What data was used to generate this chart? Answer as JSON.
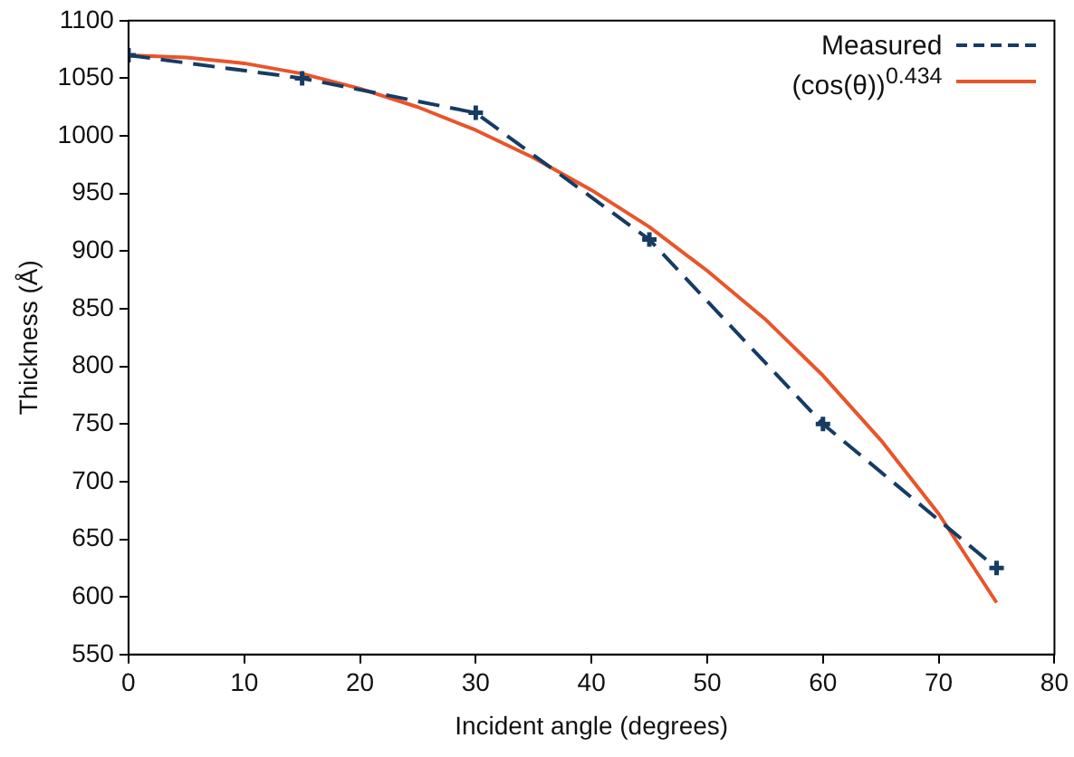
{
  "chart_data": {
    "type": "line",
    "xlabel": "Incident angle (degrees)",
    "ylabel": "Thickness (Å)",
    "xlim": [
      0,
      80
    ],
    "xticks": [
      0,
      10,
      20,
      30,
      40,
      50,
      60,
      70,
      80
    ],
    "ylim": [
      550,
      1100
    ],
    "yticks": [
      550,
      600,
      650,
      700,
      750,
      800,
      850,
      900,
      950,
      1000,
      1050,
      1100
    ],
    "grid": false,
    "legend": "top right",
    "series": [
      {
        "name": "Measured",
        "color": "#163c64",
        "marker": "cross",
        "line_style": "dashed",
        "x": [
          0,
          15,
          30,
          45,
          60,
          75
        ],
        "values": [
          1070,
          1050,
          1020,
          910,
          750,
          625
        ]
      },
      {
        "name": "(cos(θ))$^{0.434}$",
        "color": "#e8552a",
        "marker": "none",
        "line_style": "solid",
        "x": [
          0,
          5,
          10,
          15,
          20,
          25,
          30,
          35,
          40,
          45,
          50,
          55,
          60,
          65,
          70,
          75
        ],
        "values": [
          1070,
          1068,
          1063,
          1054,
          1041,
          1025,
          1005,
          981,
          953,
          921,
          883,
          841,
          792,
          736,
          672,
          595
        ]
      }
    ]
  }
}
